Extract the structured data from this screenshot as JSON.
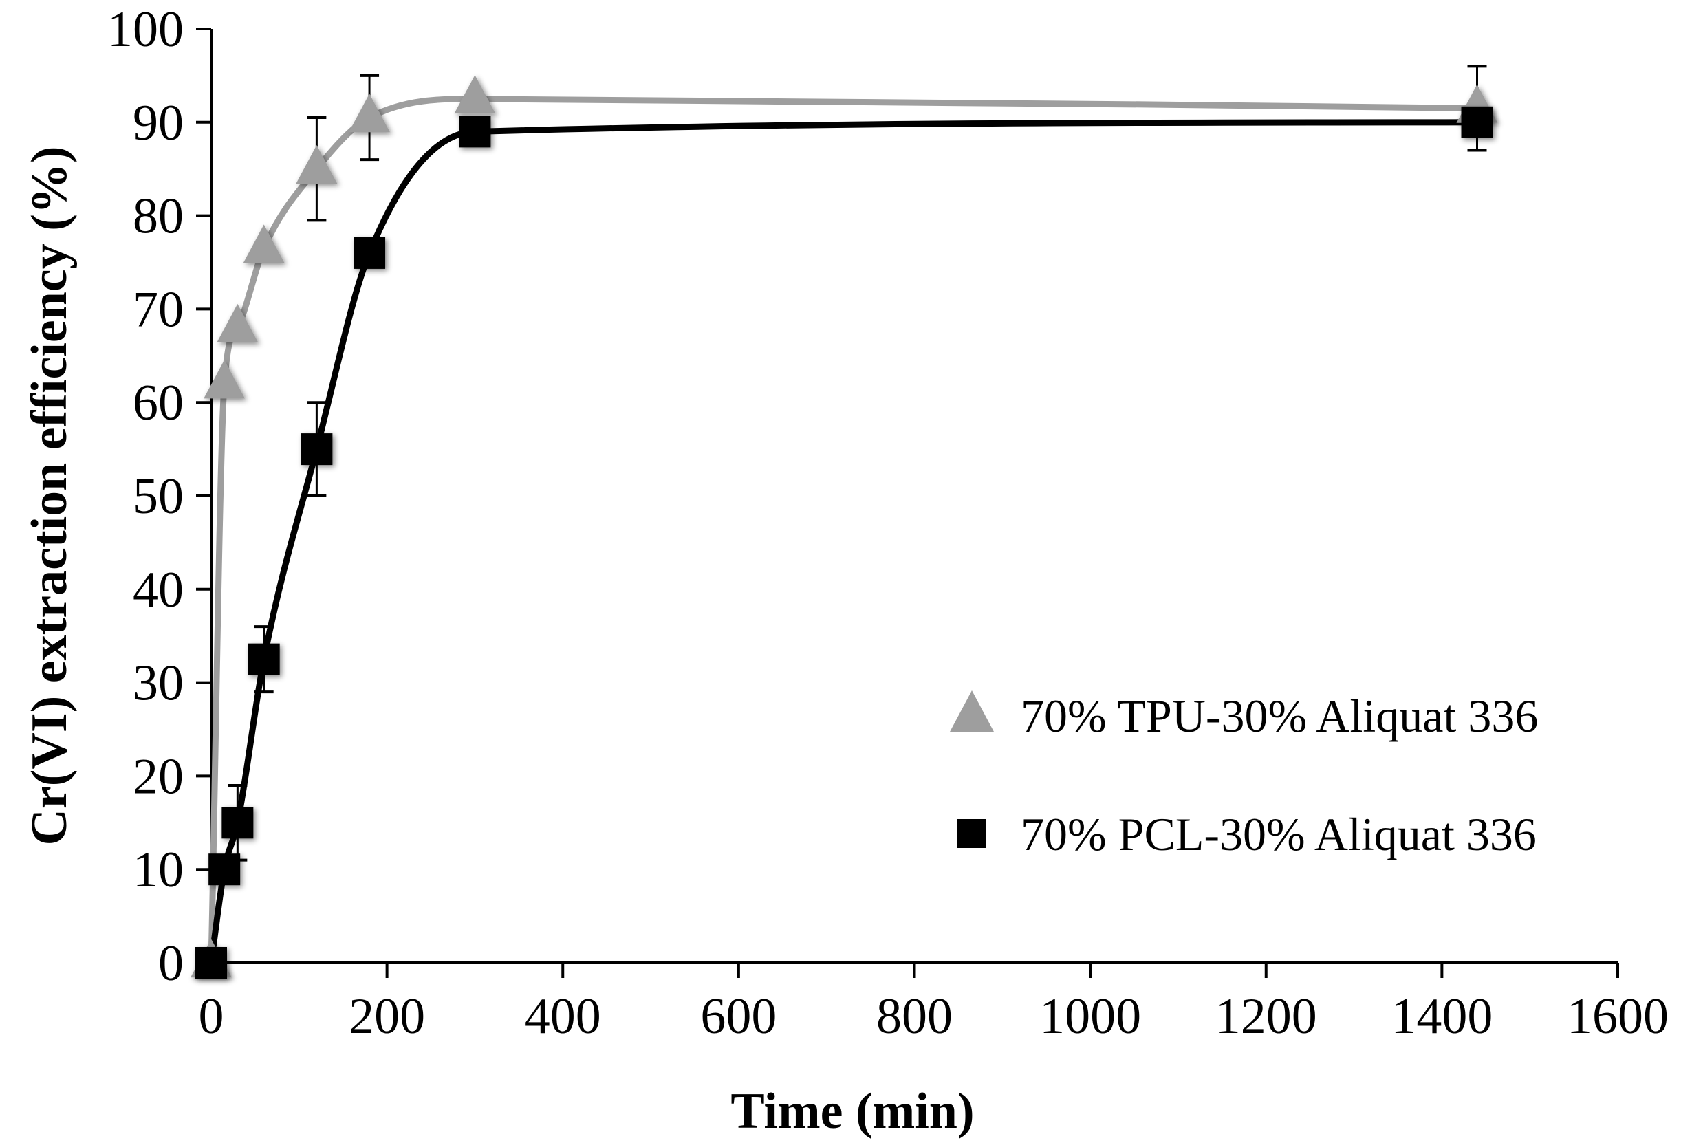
{
  "chart_data": {
    "type": "scatter",
    "title": "",
    "xlabel": "Time (min)",
    "ylabel": "Cr(VI) extraction efficiency (%)",
    "xlim": [
      0,
      1600
    ],
    "ylim": [
      0,
      100
    ],
    "xticks": [
      0,
      200,
      400,
      600,
      800,
      1000,
      1200,
      1400,
      1600
    ],
    "yticks": [
      0,
      10,
      20,
      30,
      40,
      50,
      60,
      70,
      80,
      90,
      100
    ],
    "grid": false,
    "legend_position": "right-middle",
    "series": [
      {
        "name": "70% TPU-30% Aliquat 336",
        "marker": "triangle",
        "color": "#9e9e9e",
        "x": [
          0,
          15,
          30,
          60,
          120,
          180,
          300,
          1440
        ],
        "y": [
          0,
          62,
          68,
          76.5,
          85,
          90.5,
          92.5,
          91.5
        ],
        "error": [
          0,
          0,
          0,
          0,
          5.5,
          4.5,
          0,
          4.5
        ]
      },
      {
        "name": "70% PCL-30% Aliquat 336",
        "marker": "square",
        "color": "#000000",
        "x": [
          0,
          15,
          30,
          60,
          120,
          180,
          300,
          1440
        ],
        "y": [
          0,
          10,
          15,
          32.5,
          55,
          76,
          89,
          90
        ],
        "error": [
          0,
          0,
          4,
          3.5,
          5,
          0,
          0,
          0
        ]
      }
    ]
  }
}
